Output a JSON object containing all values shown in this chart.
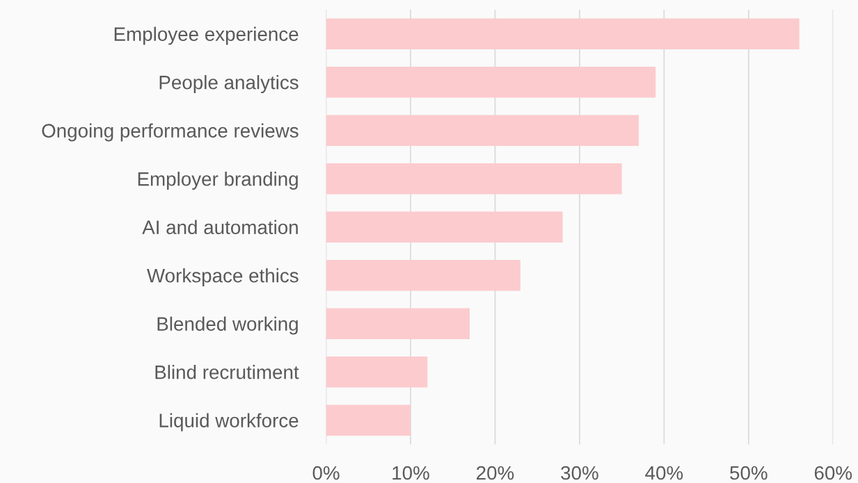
{
  "chart_data": {
    "type": "bar",
    "orientation": "horizontal",
    "categories": [
      "Employee experience",
      "People analytics",
      "Ongoing performance reviews",
      "Employer branding",
      "AI and automation",
      "Workspace ethics",
      "Blended working",
      "Blind recrutiment",
      "Liquid workforce"
    ],
    "values": [
      56,
      39,
      37,
      35,
      28,
      23,
      17,
      12,
      10
    ],
    "color": "#fccbce",
    "xlim": [
      0,
      60
    ],
    "xticks": [
      {
        "value": 0,
        "label": "0%"
      },
      {
        "value": 10,
        "label": "10%"
      },
      {
        "value": 20,
        "label": "20%"
      },
      {
        "value": 30,
        "label": "30%"
      },
      {
        "value": 40,
        "label": "40%"
      },
      {
        "value": 50,
        "label": "50%"
      },
      {
        "value": 60,
        "label": "60%"
      }
    ],
    "grid": "x",
    "legend": false
  }
}
